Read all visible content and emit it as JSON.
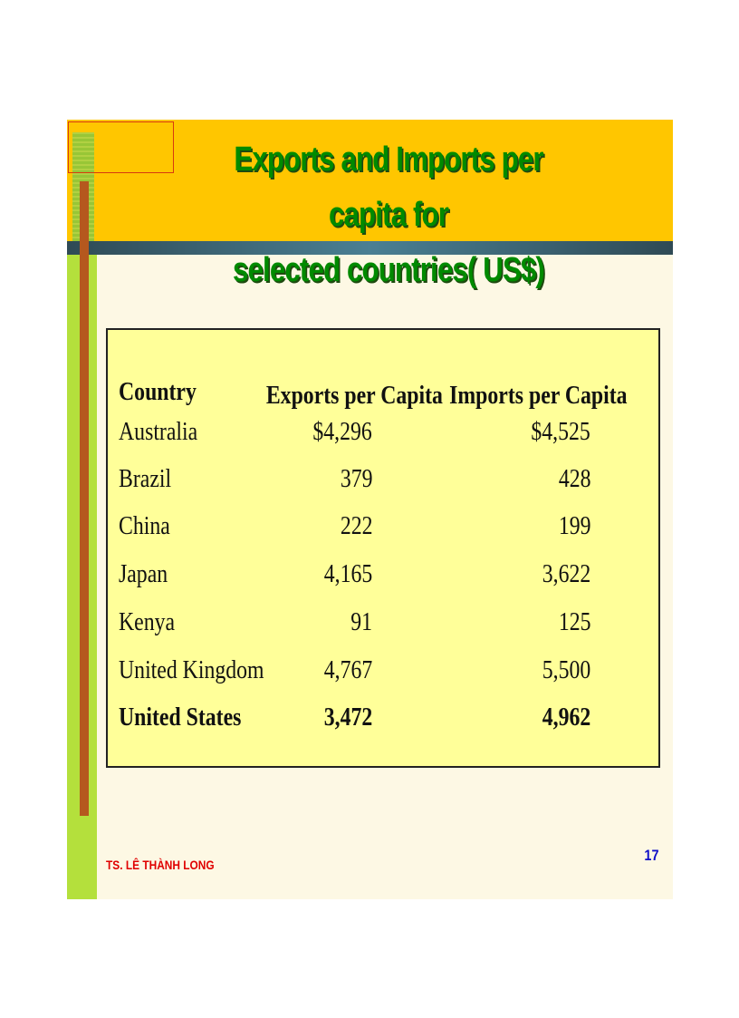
{
  "slide": {
    "title_line1": "Exports and Imports per capita for",
    "title_line2": "selected countries( US$)",
    "author": "TS. LÊ THÀNH LONG",
    "page_number": "17"
  },
  "table": {
    "headers": [
      "Country",
      "Exports per Capita",
      "Imports per Capita"
    ],
    "rows": [
      {
        "country": "Australia",
        "exports": "$4,296",
        "imports": "$4,525"
      },
      {
        "country": "Brazil",
        "exports": "379",
        "imports": "428"
      },
      {
        "country": "China",
        "exports": "222",
        "imports": "199"
      },
      {
        "country": "Japan",
        "exports": "4,165",
        "imports": "3,622"
      },
      {
        "country": "Kenya",
        "exports": "91",
        "imports": "125"
      },
      {
        "country": "United Kingdom",
        "exports": "4,767",
        "imports": "5,500"
      },
      {
        "country": "United States",
        "exports": "3,472",
        "imports": "4,962",
        "bold": true
      }
    ]
  },
  "colors": {
    "band": "#ffc600",
    "title": "#008a00",
    "table_bg": "#ffff99",
    "author": "#e00000",
    "page_number": "#1010c8"
  }
}
